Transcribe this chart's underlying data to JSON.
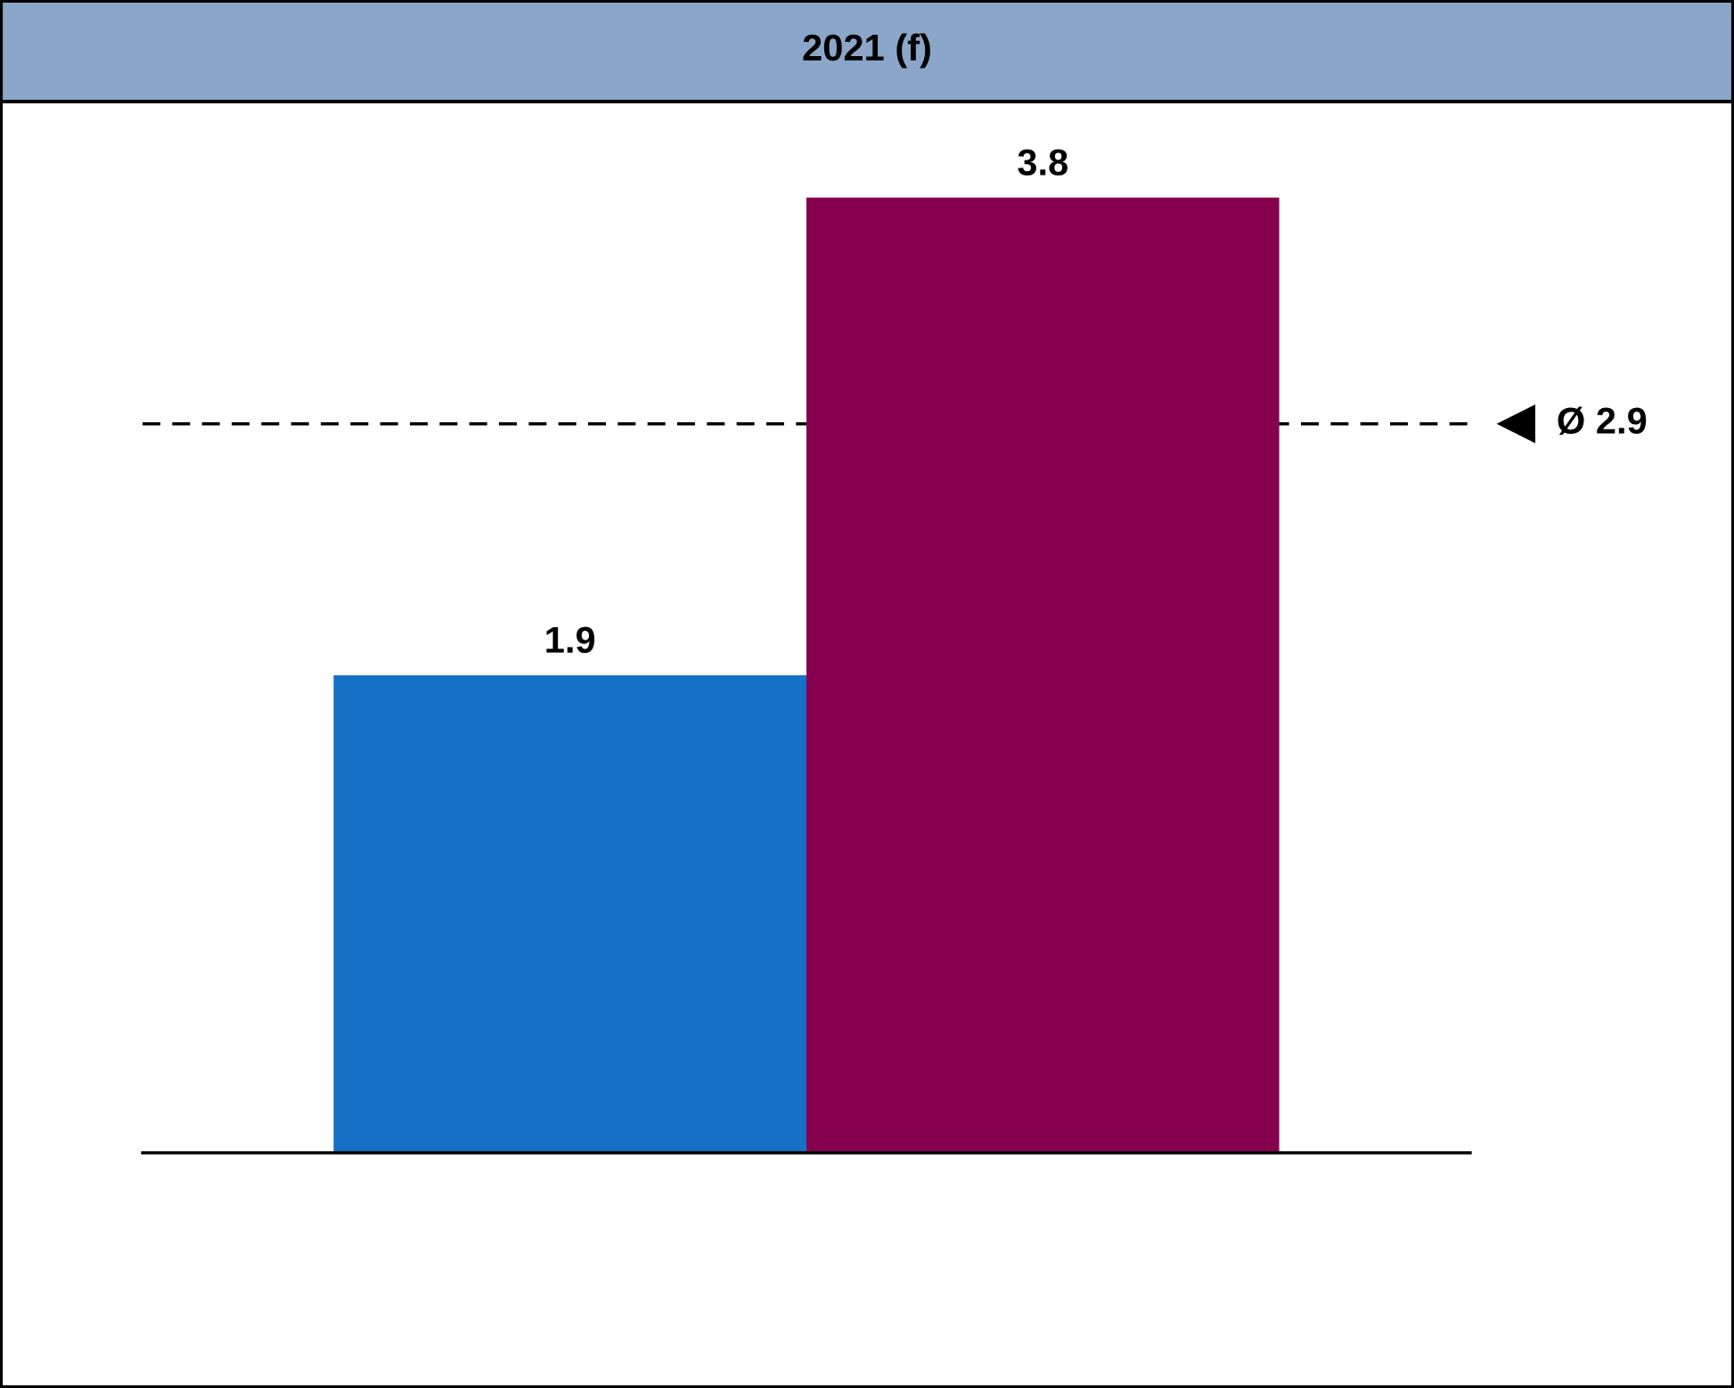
{
  "chart_data": {
    "type": "bar",
    "title": "2021 (f)",
    "categories": [
      null,
      null
    ],
    "values": [
      1.9,
      3.8
    ],
    "colors": [
      "#1570c6",
      "#870050"
    ],
    "data_labels": true,
    "ref_lines": [
      {
        "axis": "y",
        "value": 2.9,
        "label": "Ø 2.9",
        "color": "#000000",
        "line_style": "dashed"
      }
    ],
    "legend": false
  }
}
